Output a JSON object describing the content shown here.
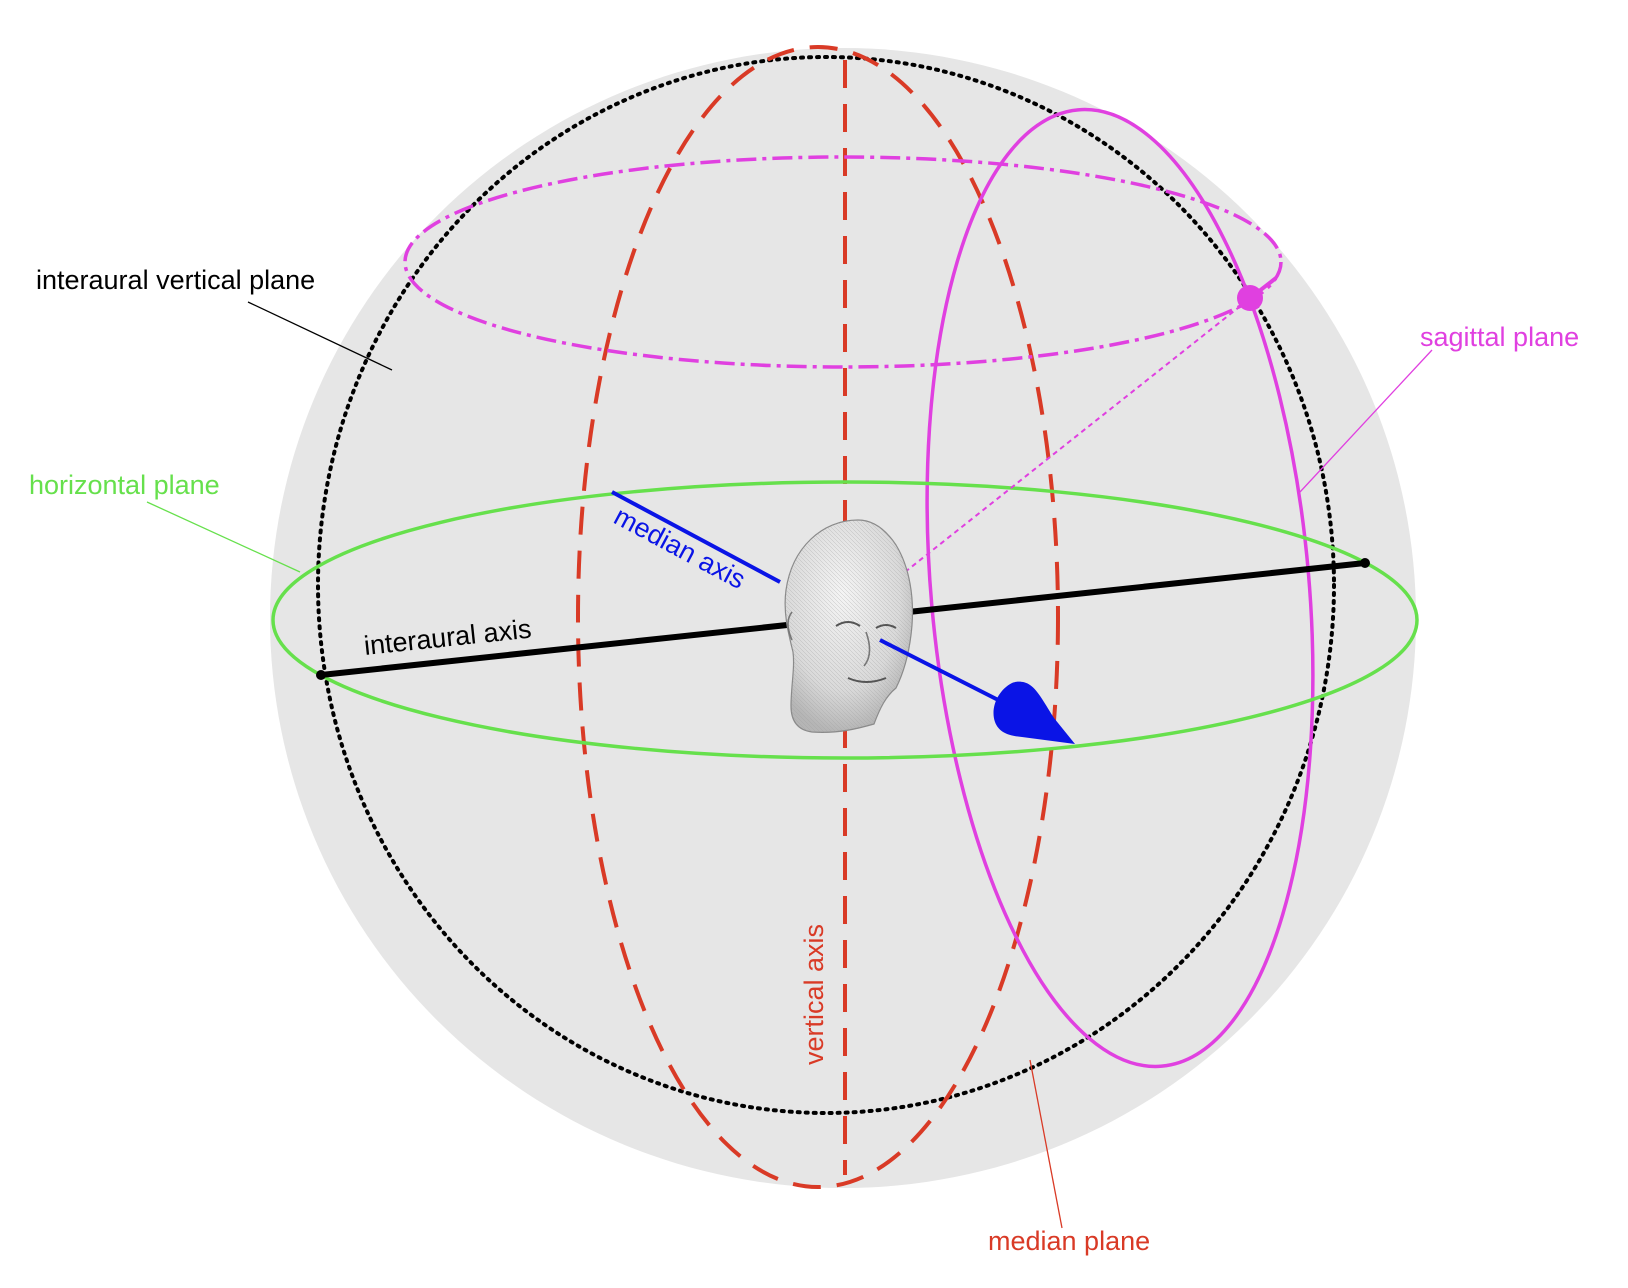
{
  "colors": {
    "sphere": "#e6e6e6",
    "interaural": "#000000",
    "horizontal": "#66e04c",
    "median": "#d93a26",
    "sagittal": "#e040e0",
    "median_axis": "#0a14e6"
  },
  "labels": {
    "interaural_vertical_plane": "interaural vertical plane",
    "horizontal_plane": "horizontal plane",
    "sagittal_plane": "sagittal plane",
    "median_plane": "median plane",
    "interaural_axis": "interaural axis",
    "median_axis": "median axis",
    "vertical_axis": "vertical axis"
  },
  "icons": {
    "head": "head-model-icon",
    "source": "sound-source-point-icon",
    "direction": "direction-arrow-icon"
  }
}
